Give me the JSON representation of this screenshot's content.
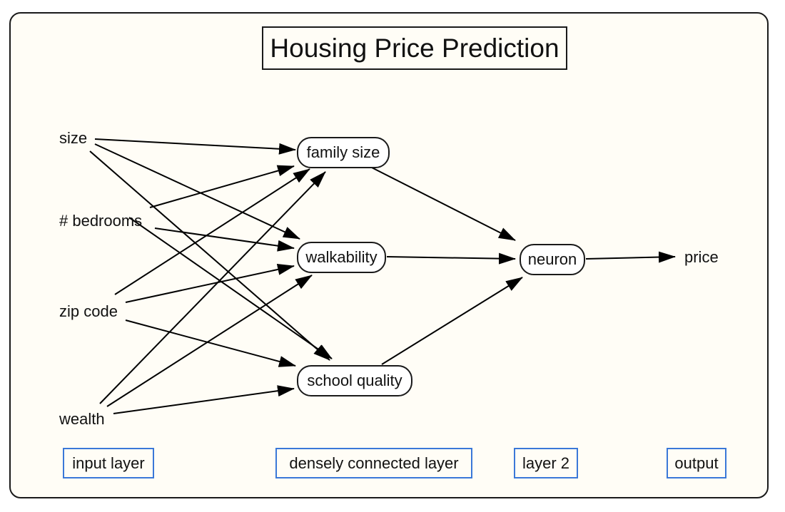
{
  "title": "Housing Price Prediction",
  "inputs": {
    "size": "size",
    "bedrooms": "# bedrooms",
    "zip": "zip code",
    "wealth": "wealth"
  },
  "hidden": {
    "family": "family size",
    "walk": "walkability",
    "school": "school quality"
  },
  "neuron": "neuron",
  "output": "price",
  "layers": {
    "input": "input layer",
    "dense": "densely connected layer",
    "layer2": "layer 2",
    "output": "output"
  },
  "colors": {
    "background": "#fffdf6",
    "stroke": "#1a1a1a",
    "layer_box_border": "#3a78d8"
  },
  "edges": [
    {
      "from": "size",
      "to": "family size"
    },
    {
      "from": "size",
      "to": "walkability"
    },
    {
      "from": "size",
      "to": "school quality"
    },
    {
      "from": "# bedrooms",
      "to": "family size"
    },
    {
      "from": "# bedrooms",
      "to": "walkability"
    },
    {
      "from": "# bedrooms",
      "to": "school quality"
    },
    {
      "from": "zip code",
      "to": "family size"
    },
    {
      "from": "zip code",
      "to": "walkability"
    },
    {
      "from": "zip code",
      "to": "school quality"
    },
    {
      "from": "wealth",
      "to": "family size"
    },
    {
      "from": "wealth",
      "to": "walkability"
    },
    {
      "from": "wealth",
      "to": "school quality"
    },
    {
      "from": "family size",
      "to": "neuron"
    },
    {
      "from": "walkability",
      "to": "neuron"
    },
    {
      "from": "school quality",
      "to": "neuron"
    },
    {
      "from": "neuron",
      "to": "price"
    }
  ]
}
